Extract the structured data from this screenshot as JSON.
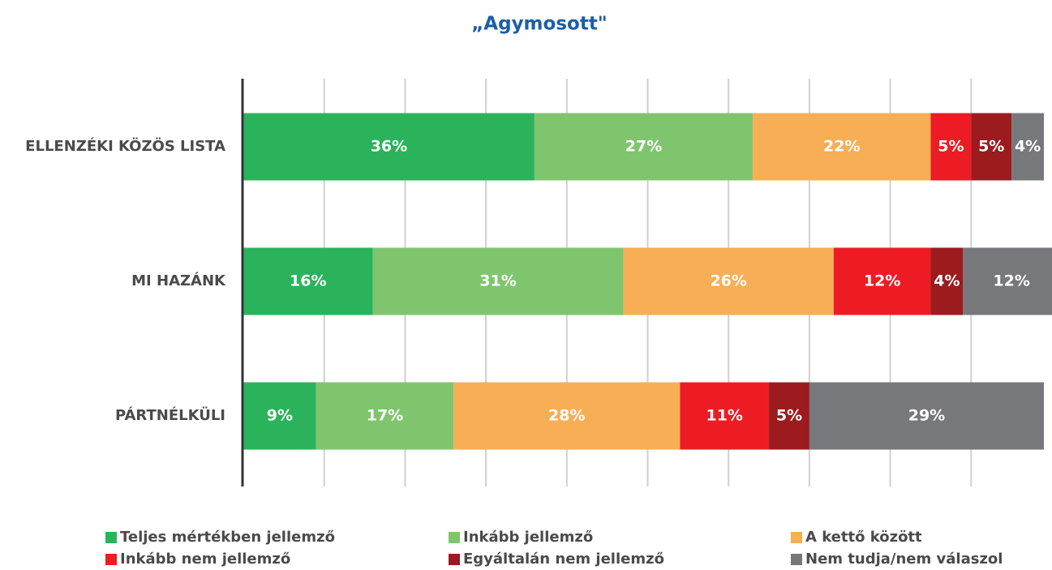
{
  "chart_data": {
    "type": "stacked_barh",
    "title": "„Agymosott\"",
    "categories": [
      "ELLENZÉKI KÖZÖS LISTA",
      "MI HAZÁNK",
      "PÁRTNÉLKÜLI"
    ],
    "series": [
      {
        "name": "Teljes mértékben jellemző",
        "color": "#2bb35b",
        "values": [
          36,
          16,
          9
        ],
        "value_labels": [
          "36%",
          "16%",
          "9%"
        ]
      },
      {
        "name": "Inkább jellemző",
        "color": "#7fc56e",
        "values": [
          27,
          31,
          17
        ],
        "value_labels": [
          "27%",
          "31%",
          "17%"
        ]
      },
      {
        "name": "A kettő között",
        "color": "#f7ae55",
        "values": [
          22,
          26,
          28
        ],
        "value_labels": [
          "22%",
          "26%",
          "28%"
        ]
      },
      {
        "name": "Inkább nem jellemző",
        "color": "#ed1c24",
        "values": [
          5,
          12,
          11
        ],
        "value_labels": [
          "5%",
          "12%",
          "11%"
        ]
      },
      {
        "name": "Egyáltalán nem jellemző",
        "color": "#9b1b1f",
        "values": [
          5,
          4,
          5
        ],
        "value_labels": [
          "5%",
          "4%",
          "5%"
        ]
      },
      {
        "name": "Nem tudja/nem válaszol",
        "color": "#77787b",
        "values": [
          4,
          12,
          29
        ],
        "value_labels": [
          "4%",
          "12%",
          "29%"
        ]
      }
    ],
    "xlim": [
      0,
      100
    ],
    "xticks": [
      10,
      20,
      30,
      40,
      50,
      60,
      70,
      80,
      90
    ],
    "grid": true
  }
}
